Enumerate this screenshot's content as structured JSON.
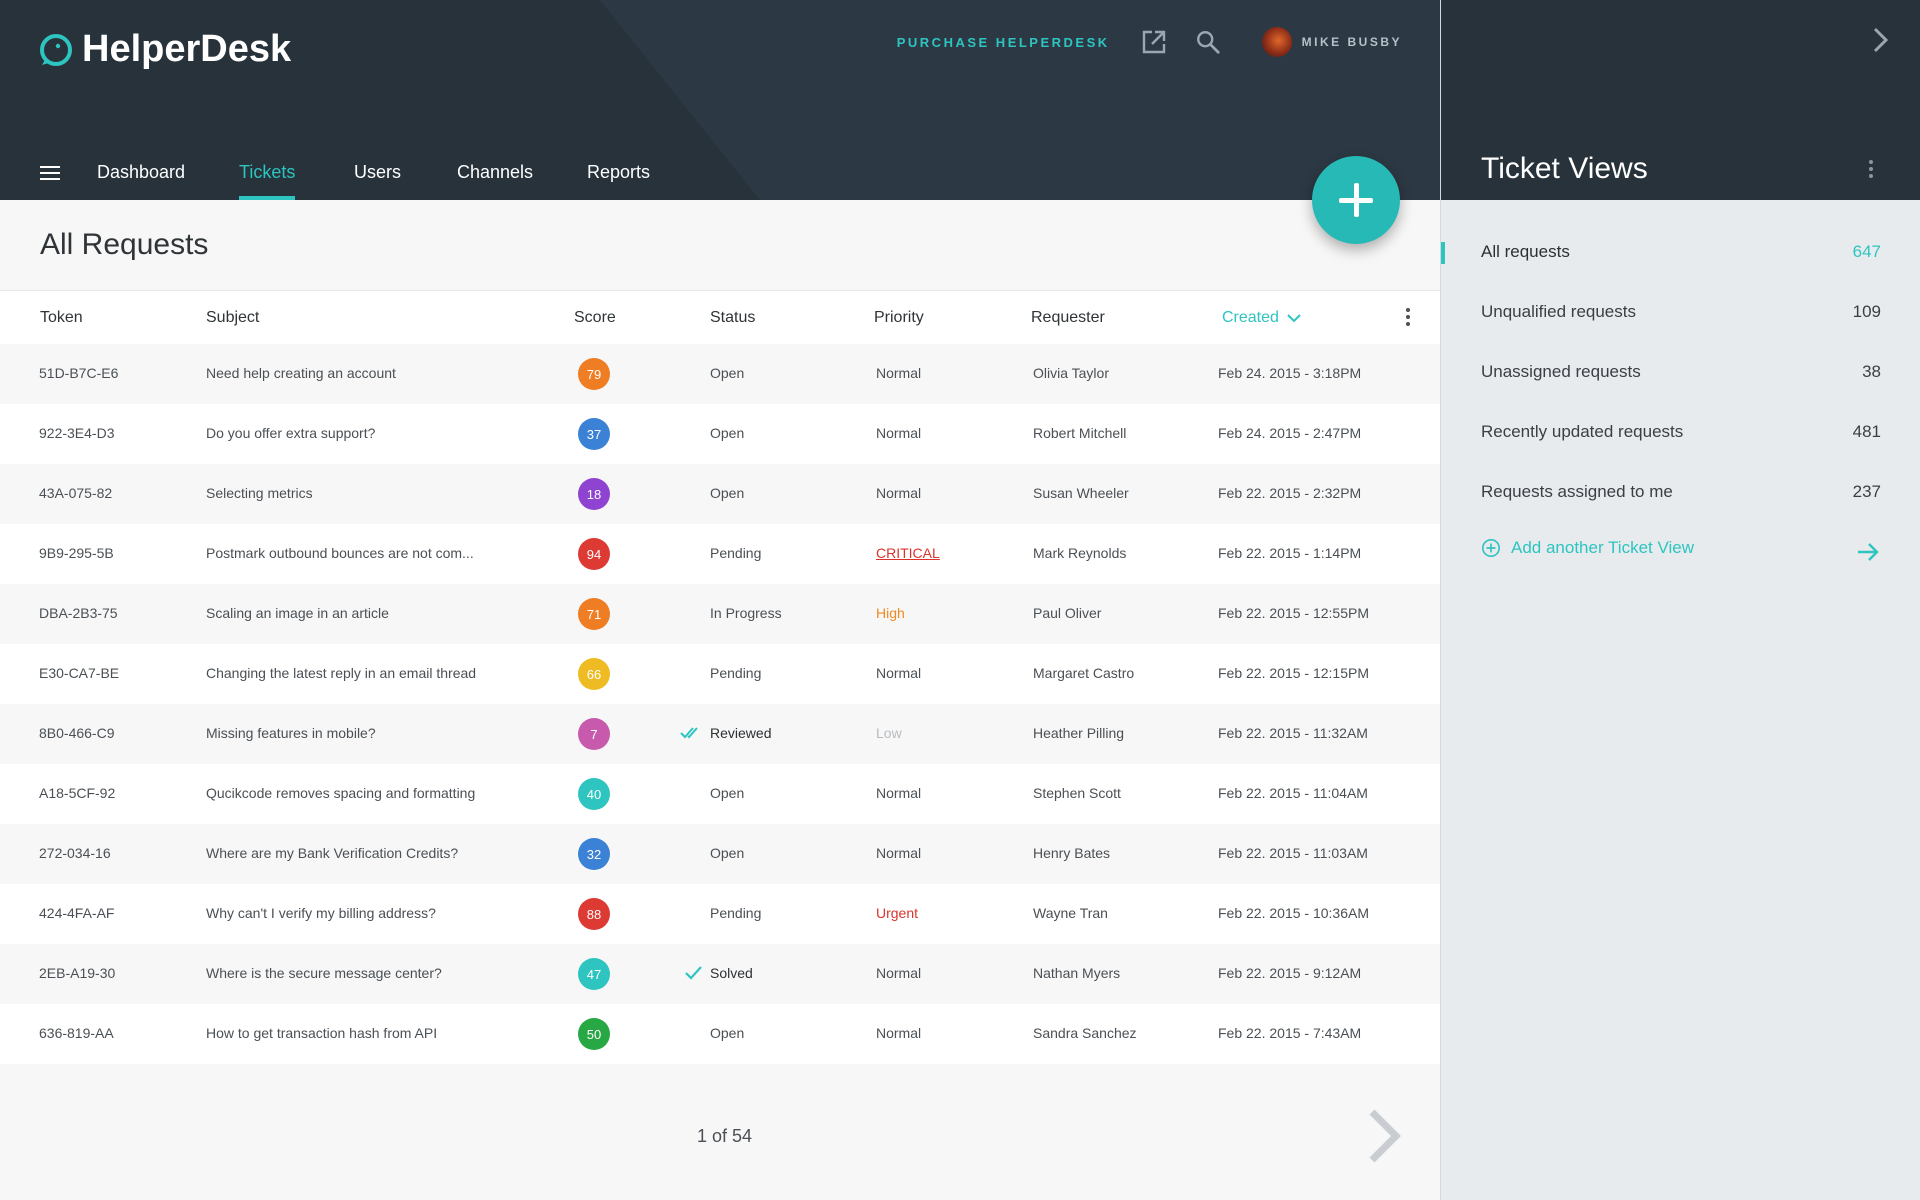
{
  "app": {
    "name": "HelperDesk",
    "purchase_label": "PURCHASE HELPERDESK",
    "user_name": "MIKE BUSBY",
    "accent": "#2ec4c0"
  },
  "nav": {
    "items": [
      {
        "label": "Dashboard"
      },
      {
        "label": "Tickets"
      },
      {
        "label": "Users"
      },
      {
        "label": "Channels"
      },
      {
        "label": "Reports"
      }
    ],
    "active": "Tickets"
  },
  "main": {
    "title": "All Requests",
    "columns": {
      "token": "Token",
      "subject": "Subject",
      "score": "Score",
      "status": "Status",
      "priority": "Priority",
      "requester": "Requester",
      "created": "Created"
    },
    "rows": [
      {
        "token": "51D-B7C-E6",
        "subject": "Need help creating an account",
        "score": "79",
        "score_color": "#ee7d23",
        "status": "Open",
        "priority": "Normal",
        "requester": "Olivia Taylor",
        "created": "Feb 24. 2015 - 3:18PM"
      },
      {
        "token": "922-3E4-D3",
        "subject": "Do you offer extra support?",
        "score": "37",
        "score_color": "#3b82d6",
        "status": "Open",
        "priority": "Normal",
        "requester": "Robert Mitchell",
        "created": "Feb 24. 2015 - 2:47PM"
      },
      {
        "token": "43A-075-82",
        "subject": "Selecting metrics",
        "score": "18",
        "score_color": "#8e44d0",
        "status": "Open",
        "priority": "Normal",
        "requester": "Susan Wheeler",
        "created": "Feb 22. 2015 - 2:32PM"
      },
      {
        "token": "9B9-295-5B",
        "subject": "Postmark outbound bounces are not com...",
        "score": "94",
        "score_color": "#dc3a33",
        "status": "Pending",
        "priority": "CRITICAL",
        "priority_style": "critical",
        "requester": "Mark Reynolds",
        "created": "Feb 22. 2015 - 1:14PM"
      },
      {
        "token": "DBA-2B3-75",
        "subject": "Scaling an image in an article",
        "score": "71",
        "score_color": "#ee7d23",
        "status": "In Progress",
        "priority": "High",
        "priority_style": "high",
        "requester": "Paul Oliver",
        "created": "Feb 22. 2015 - 12:55PM"
      },
      {
        "token": "E30-CA7-BE",
        "subject": "Changing the latest reply in an email thread",
        "score": "66",
        "score_color": "#eebb22",
        "status": "Pending",
        "priority": "Normal",
        "requester": "Margaret Castro",
        "created": "Feb 22. 2015 - 12:15PM"
      },
      {
        "token": "8B0-466-C9",
        "subject": "Missing features in mobile?",
        "score": "7",
        "score_color": "#c85aae",
        "status": "Reviewed",
        "status_icon": "double-check-icon",
        "priority": "Low",
        "priority_style": "low",
        "requester": "Heather Pilling",
        "created": "Feb 22. 2015 - 11:32AM"
      },
      {
        "token": "A18-5CF-92",
        "subject": "Qucikcode removes spacing and formatting",
        "score": "40",
        "score_color": "#2ec4c0",
        "status": "Open",
        "priority": "Normal",
        "requester": "Stephen Scott",
        "created": "Feb 22. 2015 - 11:04AM"
      },
      {
        "token": "272-034-16",
        "subject": "Where are my Bank Verification Credits?",
        "score": "32",
        "score_color": "#3b82d6",
        "status": "Open",
        "priority": "Normal",
        "requester": "Henry Bates",
        "created": "Feb 22. 2015 - 11:03AM"
      },
      {
        "token": "424-4FA-AF",
        "subject": "Why can't I verify my billing address?",
        "score": "88",
        "score_color": "#dc3a33",
        "status": "Pending",
        "priority": "Urgent",
        "priority_style": "urgent",
        "requester": "Wayne Tran",
        "created": "Feb 22. 2015 - 10:36AM"
      },
      {
        "token": "2EB-A19-30",
        "subject": "Where is the secure message center?",
        "score": "47",
        "score_color": "#2ec4c0",
        "status": "Solved",
        "status_icon": "check-icon",
        "priority": "Normal",
        "requester": "Nathan Myers",
        "created": "Feb 22. 2015 - 9:12AM"
      },
      {
        "token": "636-819-AA",
        "subject": "How to get transaction hash from API",
        "score": "50",
        "score_color": "#27a844",
        "status": "Open",
        "priority": "Normal",
        "requester": "Sandra Sanchez",
        "created": "Feb 22. 2015 - 7:43AM"
      }
    ],
    "pagination": "1 of 54"
  },
  "side": {
    "title": "Ticket Views",
    "views": [
      {
        "label": "All requests",
        "count": "647",
        "active": true
      },
      {
        "label": "Unqualified requests",
        "count": "109"
      },
      {
        "label": "Unassigned requests",
        "count": "38"
      },
      {
        "label": "Recently updated requests",
        "count": "481"
      },
      {
        "label": "Requests assigned to me",
        "count": "237"
      }
    ],
    "add_label": "Add another Ticket View"
  }
}
